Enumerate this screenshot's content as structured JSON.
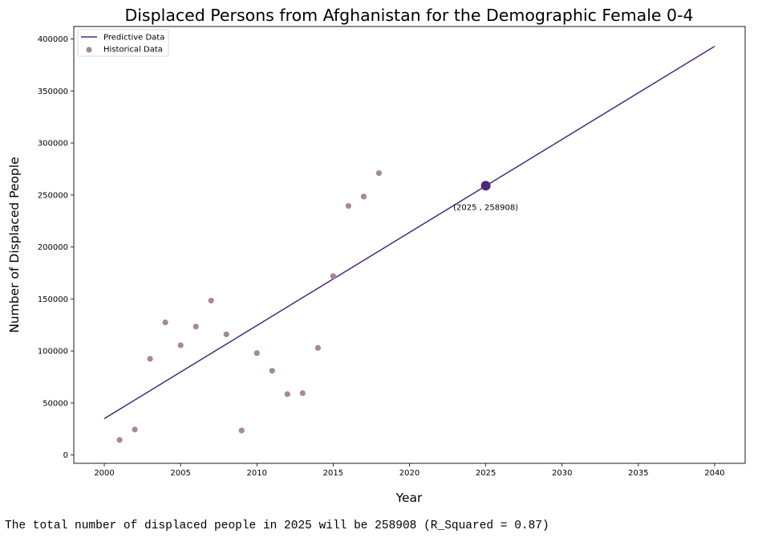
{
  "chart_data": {
    "type": "scatter",
    "title": "Displaced Persons from Afghanistan for the Demographic Female 0-4",
    "xlabel": "Year",
    "ylabel": "Number of Displaced People",
    "xlim": [
      1998,
      2042
    ],
    "ylim": [
      -8000,
      412000
    ],
    "xticks": [
      2000,
      2005,
      2010,
      2015,
      2020,
      2025,
      2030,
      2035,
      2040
    ],
    "yticks": [
      0,
      50000,
      100000,
      150000,
      200000,
      250000,
      300000,
      350000,
      400000
    ],
    "grid": false,
    "legend_position": "top-left",
    "series": [
      {
        "name": "Predictive Data",
        "kind": "line",
        "color": "#4b2a7b",
        "x": [
          2000,
          2040
        ],
        "y": [
          35000,
          393000
        ]
      },
      {
        "name": "Historical Data",
        "kind": "scatter",
        "color": "#a58a92",
        "x": [
          2001,
          2002,
          2003,
          2004,
          2005,
          2006,
          2007,
          2008,
          2009,
          2010,
          2011,
          2012,
          2013,
          2014,
          2015,
          2016,
          2017,
          2018
        ],
        "y": [
          14500,
          24500,
          92500,
          127500,
          105500,
          123500,
          148500,
          116000,
          23500,
          98000,
          81000,
          58500,
          59500,
          103000,
          172000,
          239500,
          248500,
          271000
        ]
      }
    ],
    "highlight": {
      "x": 2025,
      "y": 258908,
      "label": "(2025 , 258908)",
      "color": "#4b2a7b"
    }
  },
  "footer": {
    "text": "The total number of displaced people in 2025 will be 258908 (R_Squared = 0.87)"
  }
}
